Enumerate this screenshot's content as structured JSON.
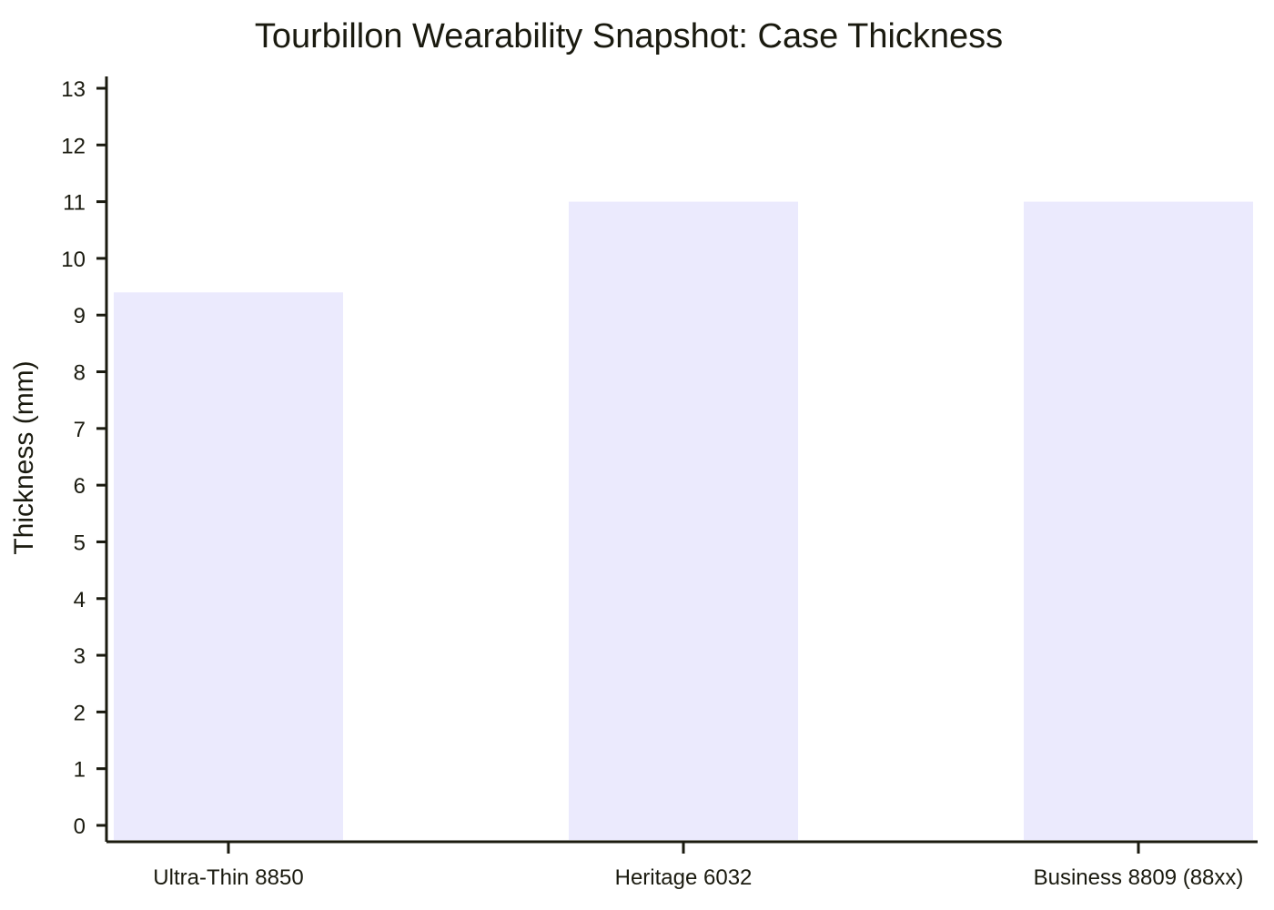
{
  "chart_data": {
    "type": "bar",
    "title": "Tourbillon Wearability Snapshot: Case Thickness",
    "xlabel": "",
    "ylabel": "Thickness (mm)",
    "categories": [
      "Ultra-Thin 8850",
      "Heritage 6032",
      "Business 8809 (88xx)"
    ],
    "values": [
      9.4,
      11.0,
      11.0
    ],
    "ylim": [
      0,
      13
    ],
    "yticks": [
      0,
      1,
      2,
      3,
      4,
      5,
      6,
      7,
      8,
      9,
      10,
      11,
      12,
      13
    ],
    "grid": false,
    "legend": "none",
    "colors": {
      "bar": "#ebeafd",
      "axis": "#1a1a0f",
      "text": "#1a1a0f"
    }
  }
}
